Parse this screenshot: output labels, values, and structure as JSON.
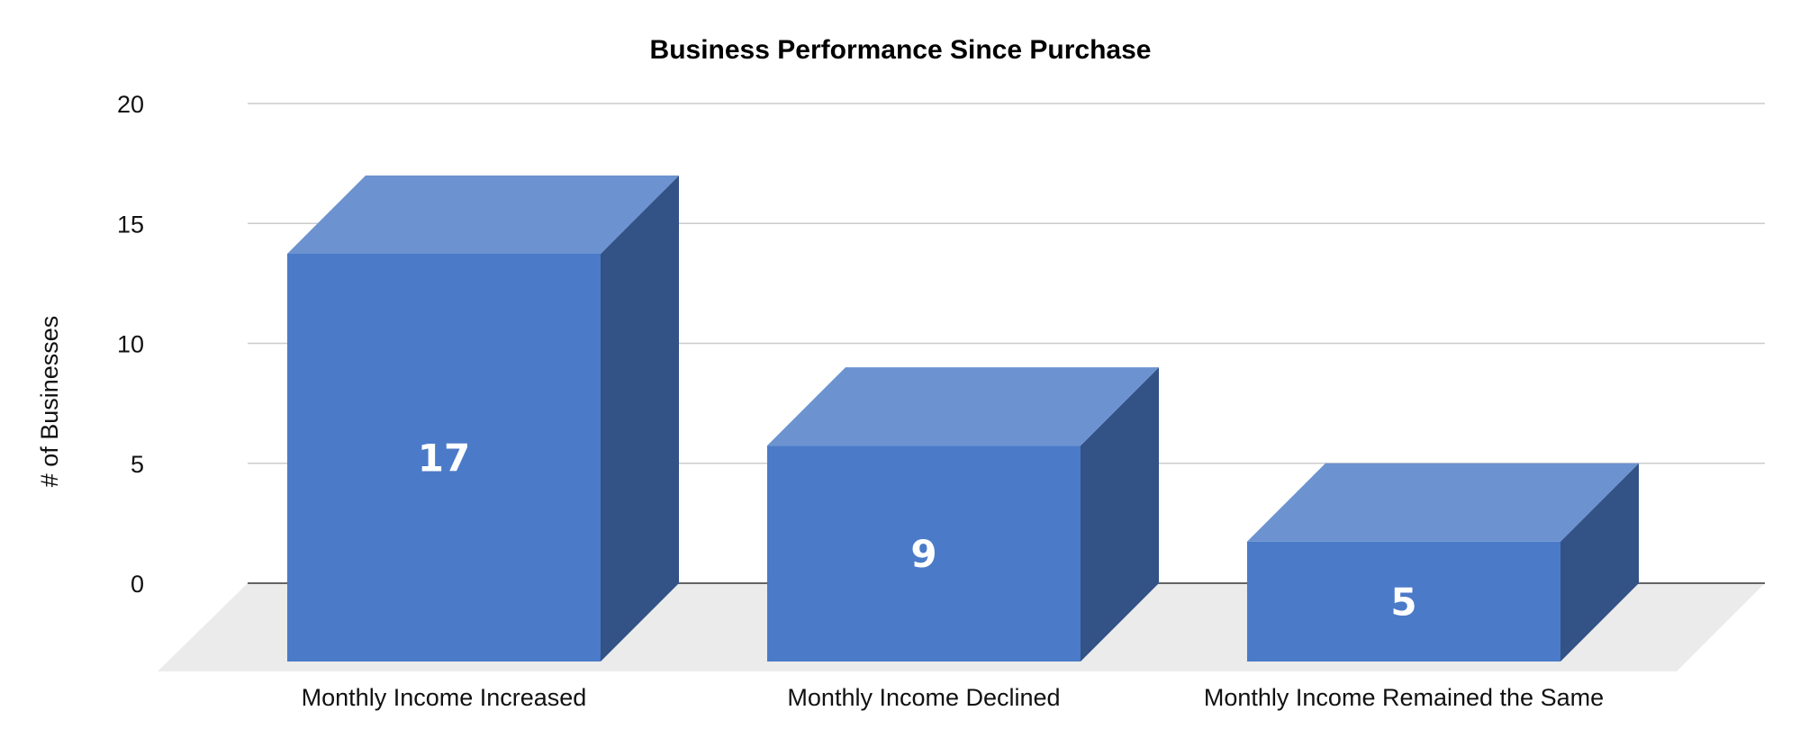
{
  "chart_data": {
    "type": "bar",
    "style": "3d",
    "title": "Business Performance Since Purchase",
    "xlabel": "",
    "ylabel": "# of Businesses",
    "ylim": [
      0,
      20
    ],
    "yticks": [
      "0",
      "5",
      "10",
      "15",
      "20"
    ],
    "categories": [
      "Monthly Income Increased",
      "Monthly Income Declined",
      "Monthly Income Remained the Same"
    ],
    "values": [
      17,
      9,
      5
    ],
    "data_labels": [
      "17",
      "9",
      "5"
    ],
    "grid": true,
    "legend": "none",
    "colors": {
      "front": "#4b7ac8",
      "top": "#6c93d0",
      "side": "#335286",
      "floor": "#ebebeb",
      "grid": "#cccccc",
      "baseline": "#333333"
    }
  }
}
